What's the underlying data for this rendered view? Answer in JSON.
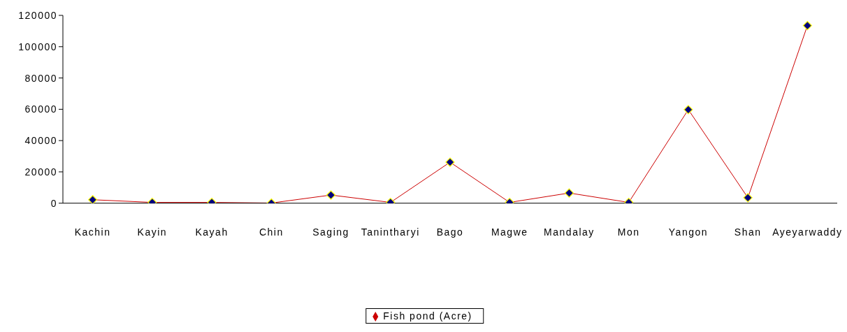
{
  "chart_data": {
    "type": "line",
    "categories": [
      "Kachin",
      "Kayin",
      "Kayah",
      "Chin",
      "Saging",
      "Tanintharyi",
      "Bago",
      "Magwe",
      "Mandalay",
      "Mon",
      "Yangon",
      "Shan",
      "Ayeyarwaddy"
    ],
    "series": [
      {
        "name": "Fish pond (Acre)",
        "color": "#cc0000",
        "values": [
          2200,
          500,
          500,
          100,
          5200,
          500,
          26200,
          500,
          6500,
          500,
          59800,
          3500,
          113500
        ]
      }
    ],
    "ylim": [
      0,
      120000
    ],
    "yticks": [
      0,
      20000,
      40000,
      60000,
      80000,
      100000,
      120000
    ],
    "grid": false,
    "legend": "bottom",
    "marker": "diamond",
    "line_style": "solid"
  }
}
